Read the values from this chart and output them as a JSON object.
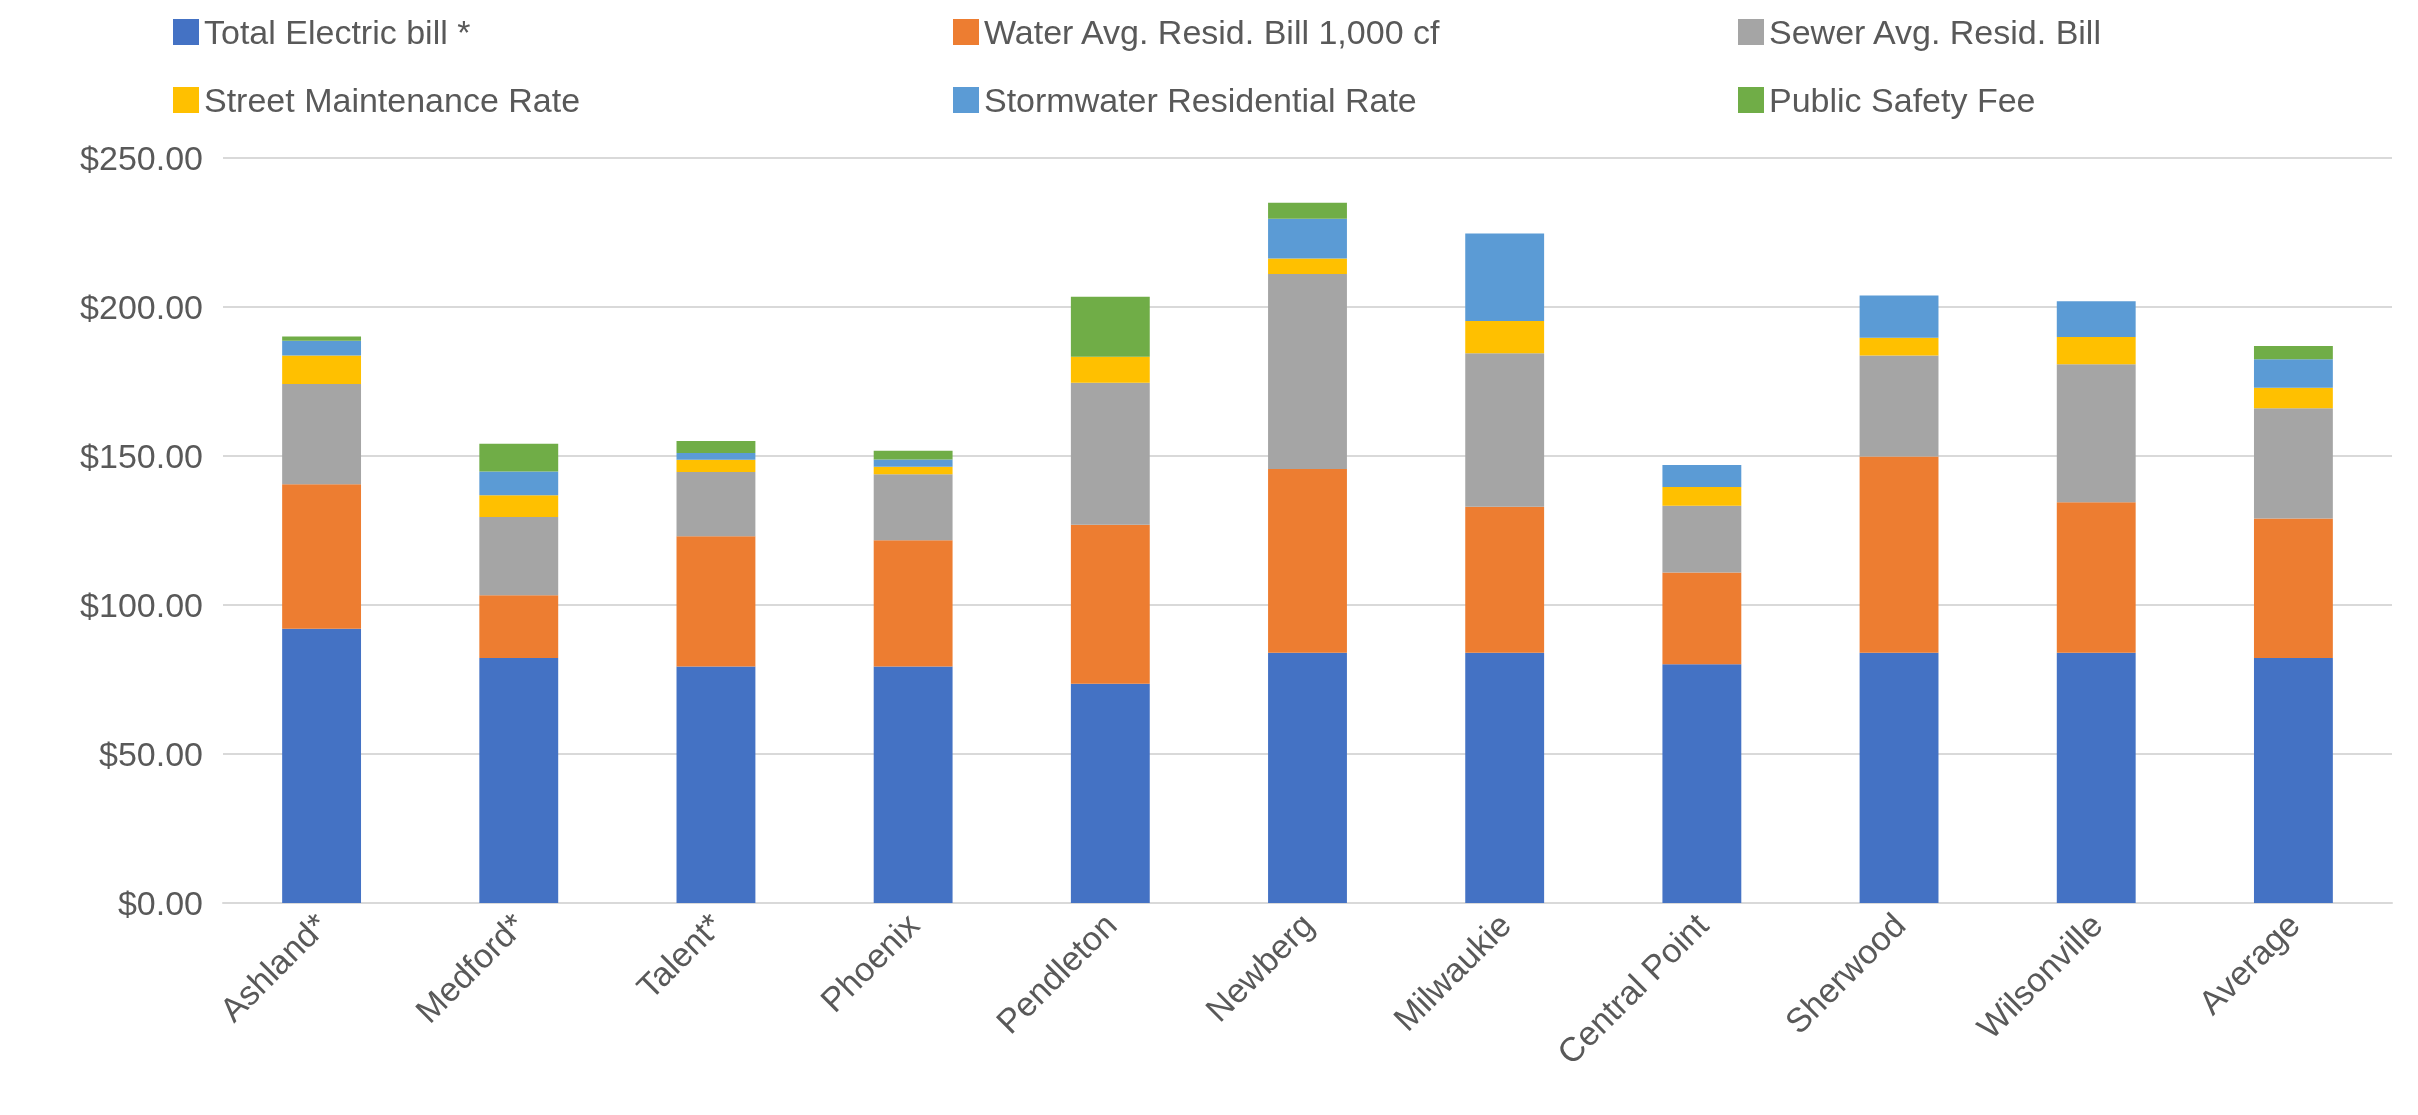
{
  "chart_data": {
    "type": "bar",
    "stacked": true,
    "categories": [
      "Ashland*",
      "Medford*",
      "Talent*",
      "Phoenix",
      "Pendleton",
      "Newberg",
      "Milwaukie",
      "Central Point",
      "Sherwood",
      "Wilsonville",
      "Average"
    ],
    "series": [
      {
        "name": "Total Electric bill *",
        "color": "#4472c4",
        "values": [
          92.0,
          82.2,
          79.4,
          79.4,
          73.6,
          84.0,
          84.0,
          80.1,
          84.0,
          84.0,
          82.2
        ]
      },
      {
        "name": "Water Avg. Resid. Bill 1,000 cf",
        "color": "#ed7d31",
        "values": [
          48.5,
          21.1,
          43.7,
          42.3,
          53.3,
          61.6,
          49.0,
          30.8,
          65.8,
          50.5,
          46.8
        ]
      },
      {
        "name": "Sewer Avg. Resid. Bill",
        "color": "#a5a5a5",
        "values": [
          33.7,
          26.2,
          21.5,
          22.2,
          47.7,
          65.5,
          51.5,
          22.4,
          33.9,
          46.3,
          37.0
        ]
      },
      {
        "name": "Street Maintenance Rate",
        "color": "#ffc000",
        "values": [
          9.5,
          7.3,
          4.1,
          2.5,
          8.7,
          5.2,
          10.8,
          6.3,
          6.0,
          9.1,
          6.9
        ]
      },
      {
        "name": "Stormwater Residential Rate",
        "color": "#5b9bd5",
        "values": [
          5.0,
          8.0,
          2.3,
          2.4,
          null,
          13.3,
          29.4,
          7.4,
          14.2,
          12.0,
          9.6
        ]
      },
      {
        "name": "Public Safety Fee",
        "color": "#70ad47",
        "values": [
          1.4,
          9.3,
          4.0,
          3.0,
          20.1,
          5.4,
          null,
          null,
          null,
          null,
          4.4
        ]
      }
    ],
    "ylim": [
      0,
      250
    ],
    "yticks": [
      {
        "value": 0,
        "label": "$0.00"
      },
      {
        "value": 50,
        "label": "$50.00"
      },
      {
        "value": 100,
        "label": "$100.00"
      },
      {
        "value": 150,
        "label": "$150.00"
      },
      {
        "value": 200,
        "label": "$200.00"
      },
      {
        "value": 250,
        "label": "$250.00"
      }
    ],
    "grid": "y",
    "legend": "top"
  }
}
